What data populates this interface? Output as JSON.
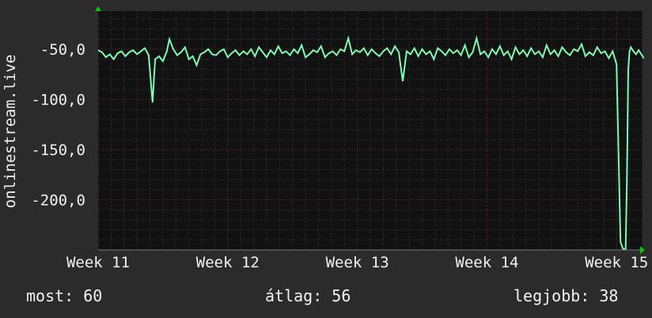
{
  "chart_data": {
    "type": "line",
    "ylabel": "onlinestream.live",
    "ylim": [
      -250,
      -12
    ],
    "yticks": [
      -200,
      -150,
      -100,
      -50
    ],
    "ytick_labels": [
      "-200,0",
      "-150,0",
      "-100,0",
      "-50,0"
    ],
    "xlim": [
      0,
      4.2
    ],
    "xticks": [
      0,
      1,
      2,
      3,
      4
    ],
    "xtick_labels": [
      "Week 11",
      "Week 12",
      "Week 13",
      "Week 14",
      "Week 15"
    ],
    "grid": true,
    "series": [
      {
        "color": "#7dfbb4",
        "points": [
          [
            0.0,
            -51
          ],
          [
            0.03,
            -53
          ],
          [
            0.06,
            -58
          ],
          [
            0.09,
            -55
          ],
          [
            0.12,
            -60
          ],
          [
            0.15,
            -54
          ],
          [
            0.18,
            -52
          ],
          [
            0.21,
            -57
          ],
          [
            0.24,
            -53
          ],
          [
            0.27,
            -51
          ],
          [
            0.3,
            -55
          ],
          [
            0.33,
            -52
          ],
          [
            0.36,
            -49
          ],
          [
            0.39,
            -56
          ],
          [
            0.42,
            -103
          ],
          [
            0.44,
            -60
          ],
          [
            0.47,
            -57
          ],
          [
            0.5,
            -62
          ],
          [
            0.53,
            -52
          ],
          [
            0.55,
            -40
          ],
          [
            0.58,
            -50
          ],
          [
            0.61,
            -56
          ],
          [
            0.64,
            -53
          ],
          [
            0.67,
            -48
          ],
          [
            0.7,
            -60
          ],
          [
            0.73,
            -57
          ],
          [
            0.76,
            -66
          ],
          [
            0.79,
            -55
          ],
          [
            0.82,
            -53
          ],
          [
            0.85,
            -50
          ],
          [
            0.88,
            -55
          ],
          [
            0.91,
            -56
          ],
          [
            0.94,
            -52
          ],
          [
            0.97,
            -50
          ],
          [
            1.0,
            -58
          ],
          [
            1.03,
            -54
          ],
          [
            1.06,
            -51
          ],
          [
            1.09,
            -56
          ],
          [
            1.12,
            -52
          ],
          [
            1.15,
            -55
          ],
          [
            1.18,
            -50
          ],
          [
            1.21,
            -57
          ],
          [
            1.24,
            -48
          ],
          [
            1.27,
            -53
          ],
          [
            1.3,
            -58
          ],
          [
            1.33,
            -51
          ],
          [
            1.36,
            -55
          ],
          [
            1.39,
            -47
          ],
          [
            1.42,
            -54
          ],
          [
            1.45,
            -52
          ],
          [
            1.48,
            -56
          ],
          [
            1.51,
            -50
          ],
          [
            1.54,
            -54
          ],
          [
            1.57,
            -46
          ],
          [
            1.6,
            -58
          ],
          [
            1.63,
            -55
          ],
          [
            1.66,
            -51
          ],
          [
            1.69,
            -53
          ],
          [
            1.72,
            -47
          ],
          [
            1.75,
            -58
          ],
          [
            1.78,
            -54
          ],
          [
            1.81,
            -52
          ],
          [
            1.84,
            -56
          ],
          [
            1.87,
            -50
          ],
          [
            1.9,
            -52
          ],
          [
            1.93,
            -39
          ],
          [
            1.96,
            -55
          ],
          [
            1.99,
            -51
          ],
          [
            2.02,
            -53
          ],
          [
            2.05,
            -49
          ],
          [
            2.08,
            -56
          ],
          [
            2.11,
            -50
          ],
          [
            2.14,
            -54
          ],
          [
            2.17,
            -57
          ],
          [
            2.2,
            -52
          ],
          [
            2.23,
            -49
          ],
          [
            2.26,
            -55
          ],
          [
            2.29,
            -47
          ],
          [
            2.32,
            -53
          ],
          [
            2.35,
            -82
          ],
          [
            2.38,
            -52
          ],
          [
            2.41,
            -55
          ],
          [
            2.44,
            -49
          ],
          [
            2.47,
            -57
          ],
          [
            2.5,
            -50
          ],
          [
            2.53,
            -55
          ],
          [
            2.56,
            -52
          ],
          [
            2.59,
            -60
          ],
          [
            2.62,
            -49
          ],
          [
            2.65,
            -52
          ],
          [
            2.68,
            -56
          ],
          [
            2.71,
            -50
          ],
          [
            2.74,
            -54
          ],
          [
            2.77,
            -51
          ],
          [
            2.8,
            -56
          ],
          [
            2.83,
            -46
          ],
          [
            2.86,
            -58
          ],
          [
            2.89,
            -53
          ],
          [
            2.92,
            -39
          ],
          [
            2.95,
            -55
          ],
          [
            2.98,
            -52
          ],
          [
            3.01,
            -58
          ],
          [
            3.04,
            -50
          ],
          [
            3.07,
            -55
          ],
          [
            3.1,
            -47
          ],
          [
            3.13,
            -56
          ],
          [
            3.16,
            -52
          ],
          [
            3.19,
            -60
          ],
          [
            3.22,
            -48
          ],
          [
            3.25,
            -55
          ],
          [
            3.28,
            -51
          ],
          [
            3.31,
            -57
          ],
          [
            3.34,
            -49
          ],
          [
            3.37,
            -55
          ],
          [
            3.4,
            -52
          ],
          [
            3.43,
            -58
          ],
          [
            3.46,
            -46
          ],
          [
            3.49,
            -55
          ],
          [
            3.52,
            -51
          ],
          [
            3.55,
            -57
          ],
          [
            3.58,
            -48
          ],
          [
            3.61,
            -53
          ],
          [
            3.64,
            -56
          ],
          [
            3.67,
            -50
          ],
          [
            3.7,
            -52
          ],
          [
            3.73,
            -45
          ],
          [
            3.76,
            -57
          ],
          [
            3.79,
            -53
          ],
          [
            3.82,
            -56
          ],
          [
            3.85,
            -48
          ],
          [
            3.88,
            -54
          ],
          [
            3.91,
            -52
          ],
          [
            3.94,
            -59
          ],
          [
            3.97,
            -52
          ],
          [
            4.0,
            -65
          ],
          [
            4.03,
            -242
          ],
          [
            4.05,
            -249
          ],
          [
            4.07,
            -249
          ],
          [
            4.08,
            -180
          ],
          [
            4.09,
            -70
          ],
          [
            4.1,
            -52
          ],
          [
            4.11,
            -48
          ],
          [
            4.13,
            -52
          ],
          [
            4.15,
            -55
          ],
          [
            4.17,
            -51
          ],
          [
            4.19,
            -55
          ],
          [
            4.21,
            -59
          ]
        ]
      }
    ]
  },
  "stats": {
    "current": "most: 60",
    "average": "átlag: 56",
    "max": "legjobb: 38"
  }
}
